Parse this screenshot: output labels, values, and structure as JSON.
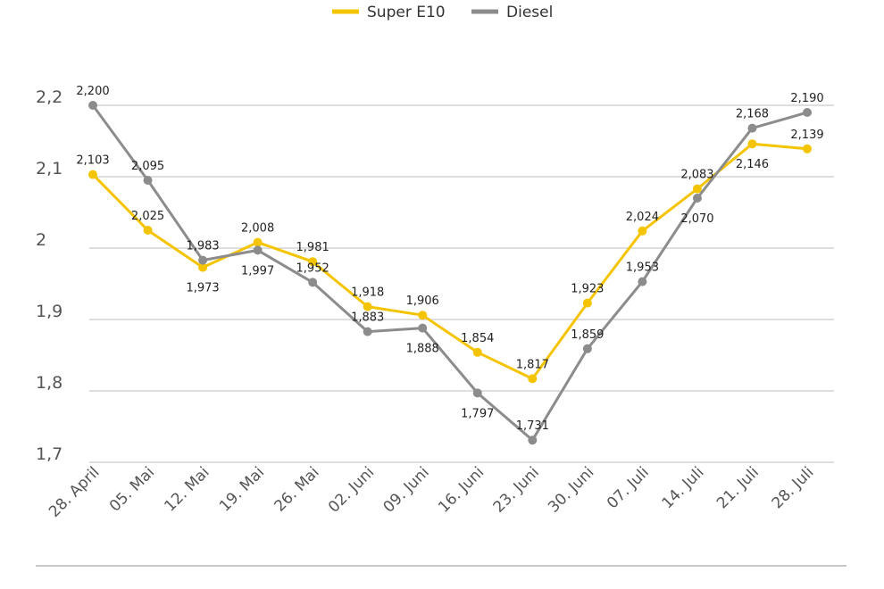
{
  "chart_data": {
    "type": "line",
    "categories": [
      "28. April",
      "05. Mai",
      "12. Mai",
      "19. Mai",
      "26. Mai",
      "02. Juni",
      "09. Juni",
      "16. Juni",
      "23. Juni",
      "30. Juni",
      "07. Juli",
      "14. Juli",
      "21. Juli",
      "28. Juli"
    ],
    "series": [
      {
        "name": "Super E10",
        "color": "#f5c400",
        "values": [
          2.103,
          2.025,
          1.973,
          2.008,
          1.981,
          1.918,
          1.906,
          1.854,
          1.817,
          1.923,
          2.024,
          2.083,
          2.146,
          2.139
        ],
        "labels": [
          "2,103",
          "2,025",
          "1,973",
          "2,008",
          "1,981",
          "1,918",
          "1,906",
          "1,854",
          "1,817",
          "1,923",
          "2,024",
          "2,083",
          "2,146",
          "2,139"
        ]
      },
      {
        "name": "Diesel",
        "color": "#8c8c8c",
        "values": [
          2.2,
          2.095,
          1.983,
          1.997,
          1.952,
          1.883,
          1.888,
          1.797,
          1.731,
          1.859,
          1.953,
          2.07,
          2.168,
          2.19
        ],
        "labels": [
          "2,200",
          "2,095",
          "1,983",
          "1,997",
          "1,952",
          "1,883",
          "1,888",
          "1,797",
          "1,731",
          "1,859",
          "1,953",
          "2,070",
          "2,168",
          "2,190"
        ]
      }
    ],
    "yticks": [
      1.7,
      1.8,
      1.9,
      2.0,
      2.1,
      2.2
    ],
    "ytick_labels": [
      "1,7",
      "1,8",
      "1,9",
      "2",
      "2,1",
      "2,2"
    ],
    "ylim": [
      1.7,
      2.2
    ],
    "grid": true,
    "legend_position": "top-center",
    "title": "",
    "xlabel": "",
    "ylabel": ""
  }
}
